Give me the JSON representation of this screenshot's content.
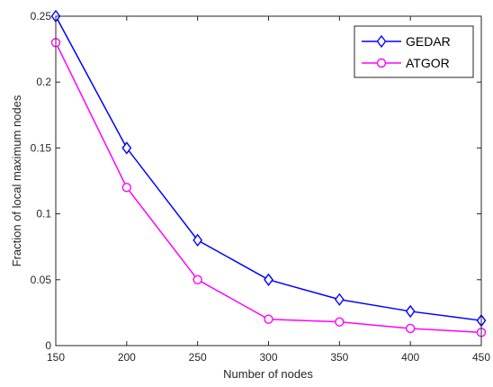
{
  "chart_data": {
    "type": "line",
    "title": "",
    "xlabel": "Number of nodes",
    "ylabel": "Fraction of local maximum nodes",
    "x": [
      150,
      200,
      250,
      300,
      350,
      400,
      450
    ],
    "xlim": [
      150,
      450
    ],
    "ylim": [
      0,
      0.25
    ],
    "xticks": [
      "150",
      "200",
      "250",
      "300",
      "350",
      "400",
      "450"
    ],
    "yticks": [
      "0",
      "0.05",
      "0.1",
      "0.15",
      "0.2",
      "0.25"
    ],
    "grid": false,
    "legend_position": "top-right",
    "series": [
      {
        "name": "GEDAR",
        "values": [
          0.25,
          0.15,
          0.08,
          0.05,
          0.035,
          0.026,
          0.019
        ],
        "color": "#0000ff",
        "marker": "diamond"
      },
      {
        "name": "ATGOR",
        "values": [
          0.23,
          0.12,
          0.05,
          0.02,
          0.018,
          0.013,
          0.01
        ],
        "color": "#ff00ff",
        "marker": "circle"
      }
    ]
  }
}
